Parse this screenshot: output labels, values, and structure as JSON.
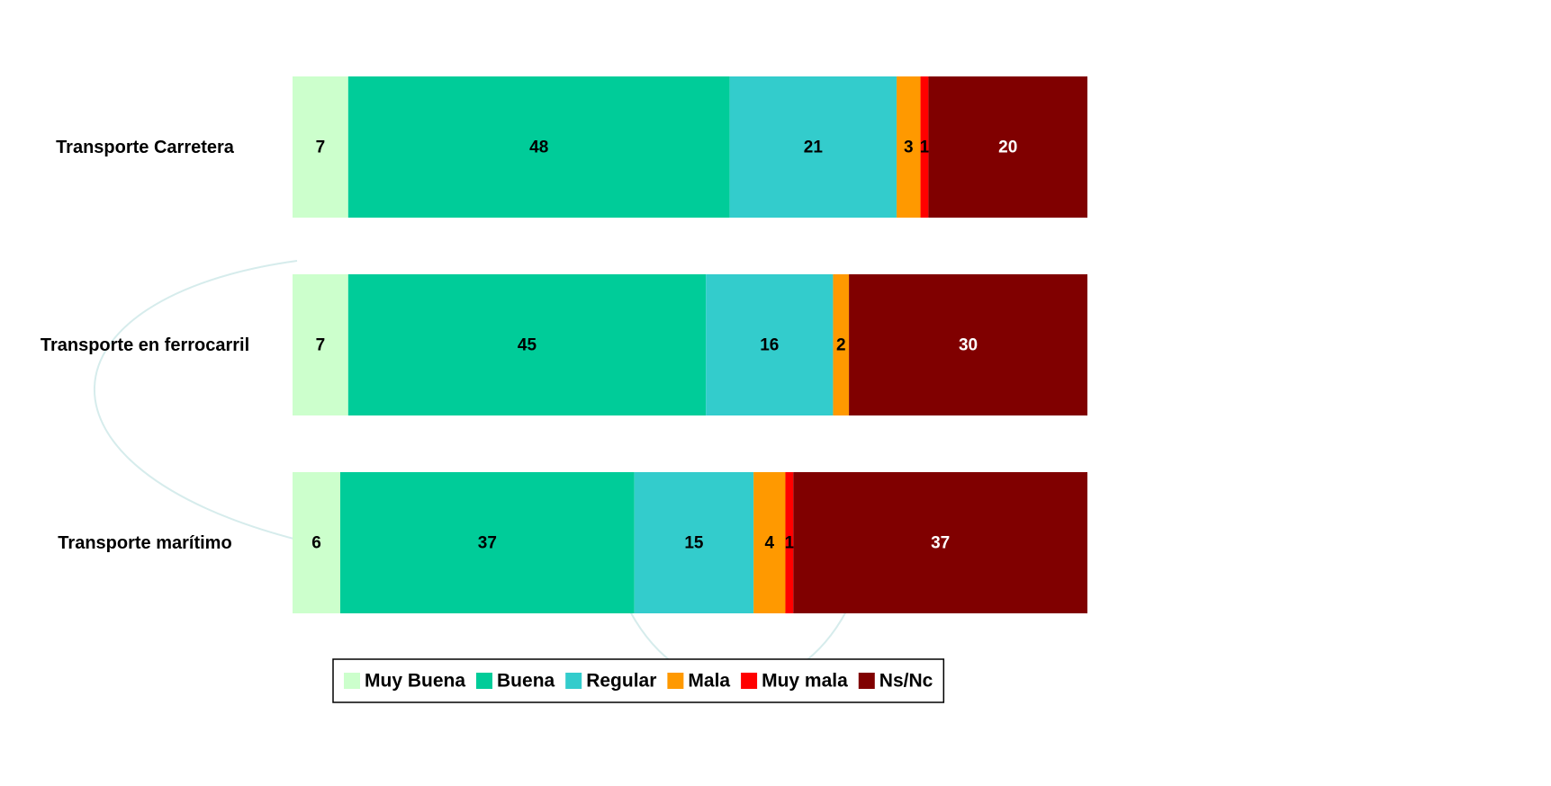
{
  "chart_data": {
    "type": "stacked-bar",
    "categories": [
      "Transporte Carretera",
      "Transporte en ferrocarril",
      "Transporte marítimo"
    ],
    "series": [
      {
        "name": "Muy Buena",
        "color": "#ccffcc",
        "values": [
          7,
          7,
          6
        ]
      },
      {
        "name": "Buena",
        "color": "#00cc99",
        "values": [
          48,
          45,
          37
        ]
      },
      {
        "name": "Regular",
        "color": "#33cccc",
        "values": [
          21,
          16,
          15
        ]
      },
      {
        "name": "Mala",
        "color": "#ff9900",
        "values": [
          3,
          2,
          4
        ]
      },
      {
        "name": "Muy mala",
        "color": "#ff0000",
        "values": [
          1,
          null,
          1
        ]
      },
      {
        "name": "Ns/Nc",
        "color": "#800000",
        "values": [
          20,
          30,
          37
        ]
      }
    ],
    "legend": "bottom"
  }
}
